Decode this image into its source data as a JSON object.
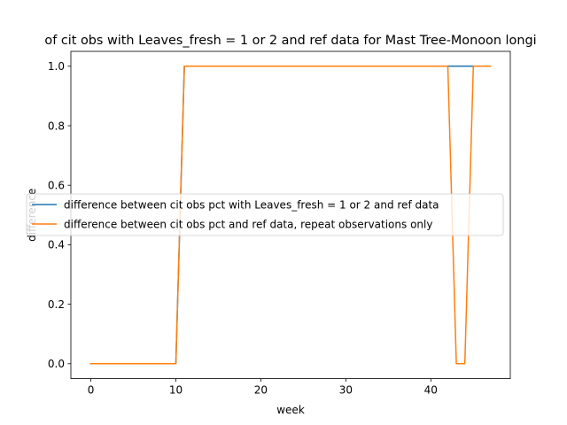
{
  "chart_data": {
    "type": "line",
    "title": "of cit obs with Leaves_fresh = 1 or 2 and ref data for Mast Tree-Monoon longi",
    "xlabel": "week",
    "ylabel": "difference",
    "xlim": [
      -2.35,
      49.35
    ],
    "ylim": [
      -0.05,
      1.05
    ],
    "xticks": [
      0,
      10,
      20,
      30,
      40
    ],
    "yticks": [
      0.0,
      0.2,
      0.4,
      0.6,
      0.8,
      1.0
    ],
    "xtick_labels": [
      "0",
      "10",
      "20",
      "30",
      "40"
    ],
    "ytick_labels": [
      "0.0",
      "0.2",
      "0.4",
      "0.6",
      "0.8",
      "1.0"
    ],
    "grid": false,
    "legend_position": "center-left",
    "series": [
      {
        "name": "difference between cit obs pct with Leaves_fresh = 1 or 2 and ref data",
        "color": "#1f77b4",
        "x": [
          0,
          1,
          2,
          3,
          4,
          5,
          6,
          7,
          8,
          9,
          10,
          11,
          12,
          13,
          14,
          15,
          16,
          17,
          18,
          19,
          20,
          21,
          22,
          23,
          24,
          25,
          26,
          27,
          28,
          29,
          30,
          31,
          32,
          33,
          34,
          35,
          36,
          37,
          38,
          39,
          40,
          41,
          42,
          43,
          44,
          45,
          46,
          47
        ],
        "values": [
          0,
          0,
          0,
          0,
          0,
          0,
          0,
          0,
          0,
          0,
          0,
          1,
          1,
          1,
          1,
          1,
          1,
          1,
          1,
          1,
          1,
          1,
          1,
          1,
          1,
          1,
          1,
          1,
          1,
          1,
          1,
          1,
          1,
          1,
          1,
          1,
          1,
          1,
          1,
          1,
          1,
          1,
          1,
          1,
          1,
          1,
          1,
          1
        ]
      },
      {
        "name": "difference between cit obs pct and ref data, repeat observations only",
        "color": "#ff7f0e",
        "x": [
          0,
          1,
          2,
          3,
          4,
          5,
          6,
          7,
          8,
          9,
          10,
          11,
          12,
          13,
          14,
          15,
          16,
          17,
          18,
          19,
          20,
          21,
          22,
          23,
          24,
          25,
          26,
          27,
          28,
          29,
          30,
          31,
          32,
          33,
          34,
          35,
          36,
          37,
          38,
          39,
          40,
          41,
          42,
          43,
          44,
          45,
          46,
          47
        ],
        "values": [
          0,
          0,
          0,
          0,
          0,
          0,
          0,
          0,
          0,
          0,
          0,
          1,
          1,
          1,
          1,
          1,
          1,
          1,
          1,
          1,
          1,
          1,
          1,
          1,
          1,
          1,
          1,
          1,
          1,
          1,
          1,
          1,
          1,
          1,
          1,
          1,
          1,
          1,
          1,
          1,
          1,
          1,
          1,
          0,
          0,
          1,
          1,
          1
        ]
      }
    ]
  }
}
